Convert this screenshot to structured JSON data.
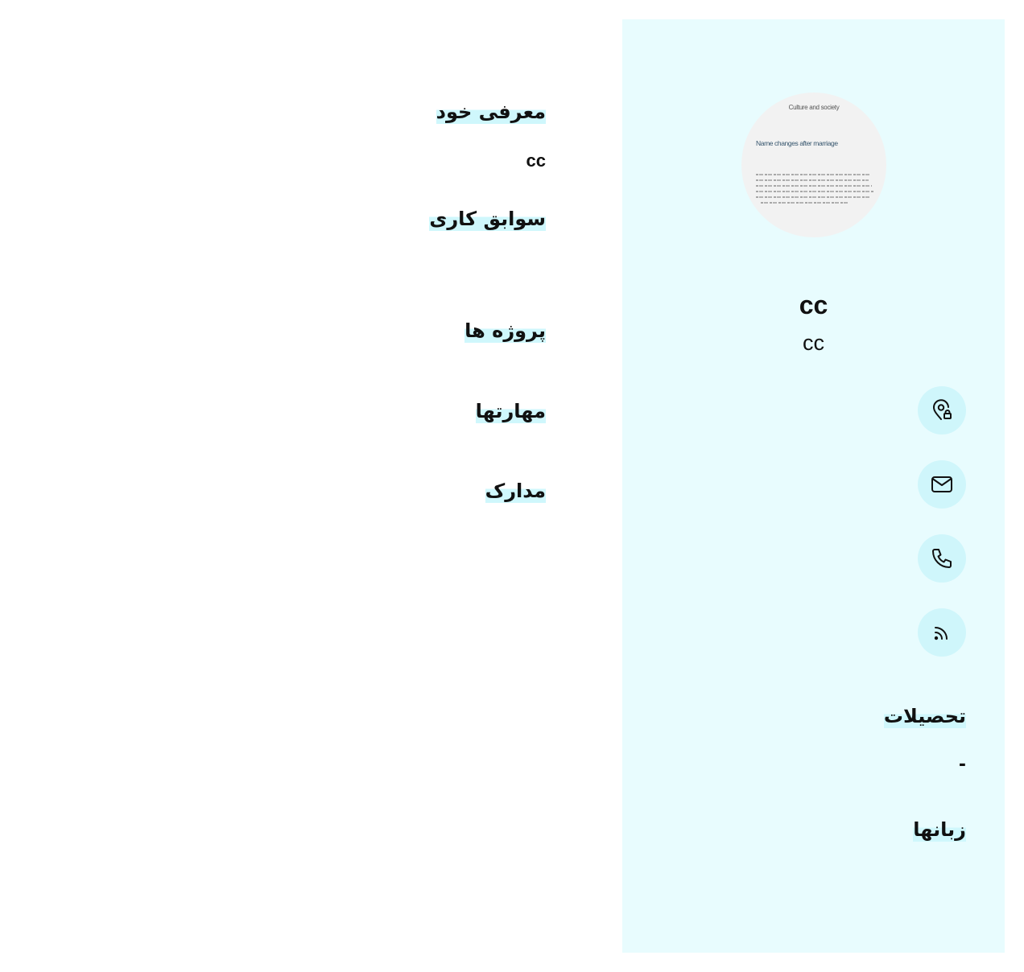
{
  "profile": {
    "name": "cc",
    "job_title": "cc",
    "photo": {
      "header": "Culture and society",
      "title": "Name changes after marriage"
    }
  },
  "contacts": [
    {
      "icon": "location-pin-icon"
    },
    {
      "icon": "email-icon"
    },
    {
      "icon": "phone-icon"
    },
    {
      "icon": "rss-icon"
    }
  ],
  "sidebar": {
    "education_title": "تحصیلات",
    "education_value": "-",
    "languages_title": "زبانها"
  },
  "main": {
    "about_title": "معرفی خود",
    "about_text": "cc",
    "experience_title": "سوابق کاری",
    "projects_title": "پروژه ها",
    "skills_title": "مهارتها",
    "documents_title": "مدارک"
  },
  "colors": {
    "sidebar_background": "#e8fcfe",
    "icon_background": "#cff6fb",
    "heading_highlight": "#cff7fc"
  }
}
